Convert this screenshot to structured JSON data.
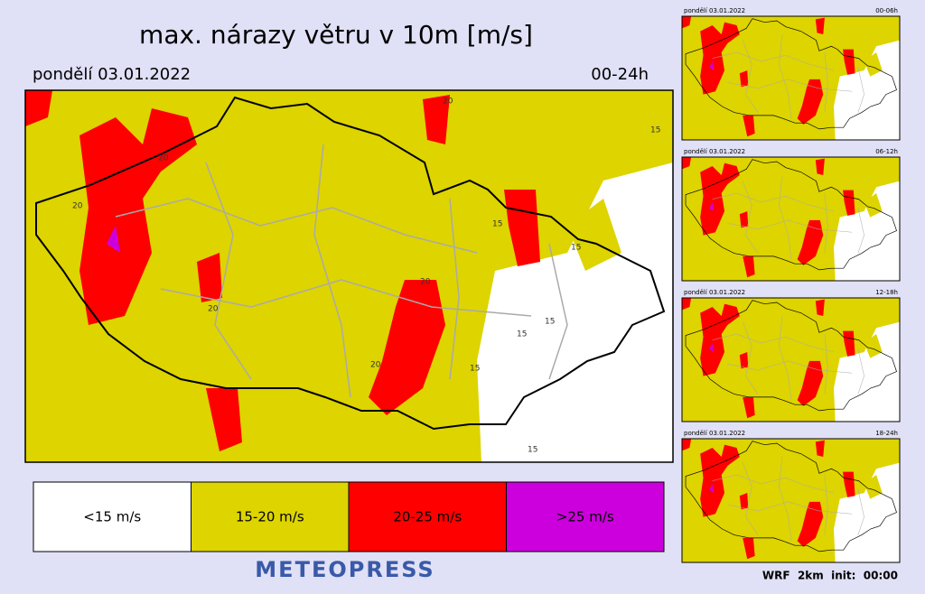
{
  "header": {
    "title": "max. nárazy větru v 10m [m/s]",
    "date": "pondělí 03.01.2022",
    "period": "00-24h"
  },
  "legend": [
    {
      "label": "<15 m/s",
      "color": "#ffffff"
    },
    {
      "label": "15-20 m/s",
      "color": "#ddd400"
    },
    {
      "label": "20-25 m/s",
      "color": "#ff0000"
    },
    {
      "label": ">25 m/s",
      "color": "#cc00dd"
    }
  ],
  "brand": "METEOPRESS",
  "footer": "WRF  2km  init:  00:00",
  "map_labels": [
    "20",
    "15",
    "15",
    "15",
    "20",
    "20",
    "20",
    "15",
    "15",
    "20",
    "15",
    "20",
    "15"
  ],
  "panels": [
    {
      "date": "pondělí 03.01.2022",
      "period": "00-06h"
    },
    {
      "date": "pondělí 03.01.2022",
      "period": "06-12h"
    },
    {
      "date": "pondělí 03.01.2022",
      "period": "12-18h"
    },
    {
      "date": "pondělí 03.01.2022",
      "period": "18-24h"
    }
  ]
}
